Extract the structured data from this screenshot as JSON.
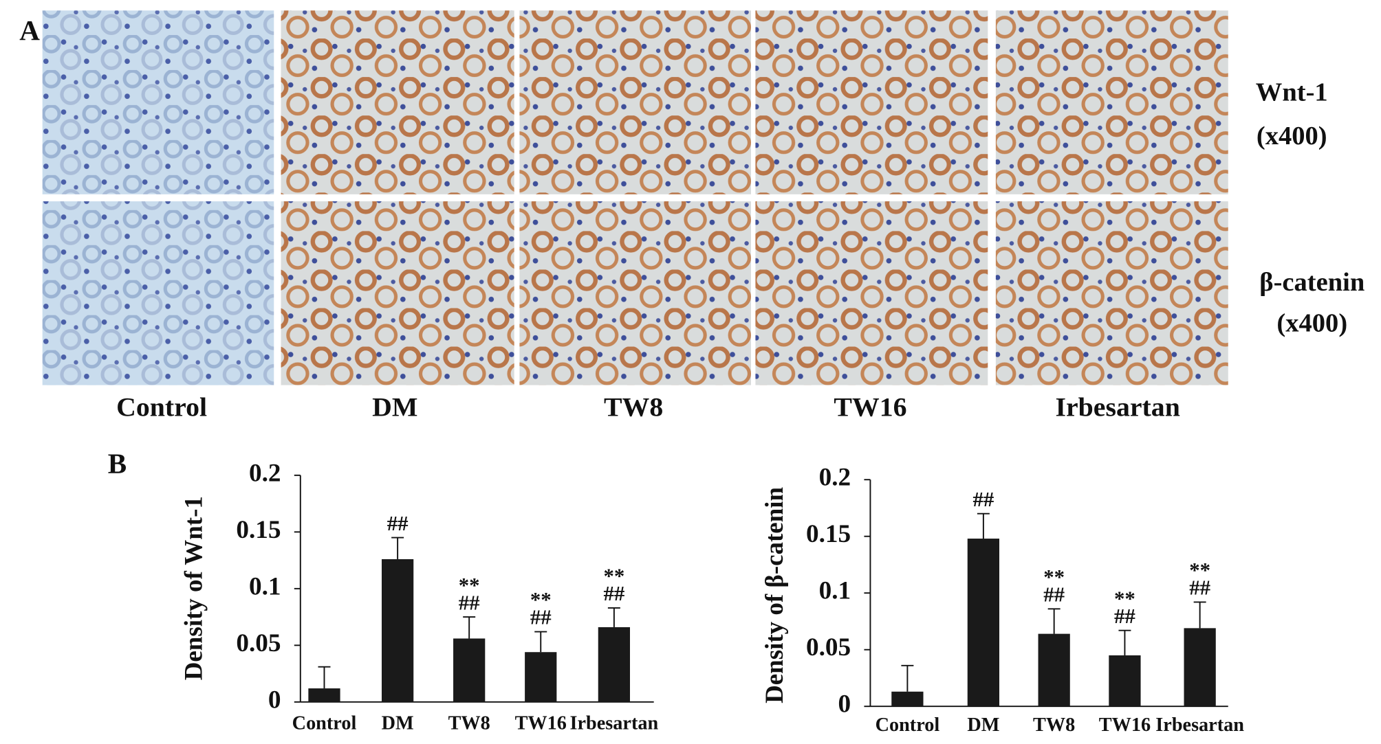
{
  "panel_a": {
    "label": "A",
    "rows": [
      {
        "name": "Wnt-1",
        "magnification": "(x400)"
      },
      {
        "name": "β-catenin",
        "magnification": "(x400)"
      }
    ],
    "columns": [
      "Control",
      "DM",
      "TW8",
      "TW16",
      "Irbesartan"
    ]
  },
  "panel_b_label": "B",
  "chart_data": [
    {
      "type": "bar",
      "ylabel": "Density of Wnt-1",
      "categories": [
        "Control",
        "DM",
        "TW8",
        "TW16",
        "Irbesartan"
      ],
      "values": [
        0.012,
        0.126,
        0.056,
        0.044,
        0.066
      ],
      "errors": [
        0.019,
        0.019,
        0.019,
        0.018,
        0.017
      ],
      "annotations": [
        null,
        [
          "##"
        ],
        [
          "**",
          "##"
        ],
        [
          "**",
          "##"
        ],
        [
          "**",
          "##"
        ]
      ],
      "color": "#1a1a1a",
      "ylim": [
        0,
        0.2
      ],
      "yticks": [
        0,
        0.05,
        0.1,
        0.15,
        0.2
      ],
      "grid": false
    },
    {
      "type": "bar",
      "ylabel": "Density of β-catenin",
      "categories": [
        "Control",
        "DM",
        "TW8",
        "TW16",
        "Irbesartan"
      ],
      "values": [
        0.013,
        0.148,
        0.064,
        0.045,
        0.069
      ],
      "errors": [
        0.023,
        0.022,
        0.022,
        0.022,
        0.023
      ],
      "annotations": [
        null,
        [
          "##"
        ],
        [
          "**",
          "##"
        ],
        [
          "**",
          "##"
        ],
        [
          "**",
          "##"
        ]
      ],
      "color": "#1a1a1a",
      "ylim": [
        0,
        0.2
      ],
      "yticks": [
        0,
        0.05,
        0.1,
        0.15,
        0.2
      ],
      "grid": false
    }
  ]
}
